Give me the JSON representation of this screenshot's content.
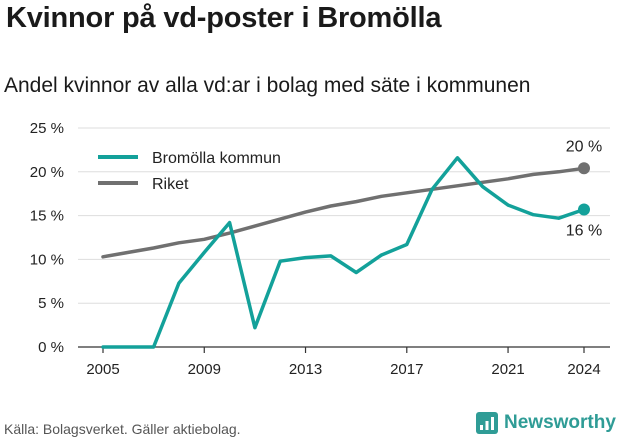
{
  "title": "Kvinnor på vd-poster i Bromölla",
  "subtitle": "Andel kvinnor av alla vd:ar i bolag med säte i kommunen",
  "source": "Källa: Bolagsverket. Gäller aktiebolag.",
  "brand": "Newsworthy",
  "colors": {
    "teal": "#13a19a",
    "gray": "#707070",
    "grid": "#dddddd",
    "brand": "#2f9c96"
  },
  "chart_data": {
    "type": "line",
    "x": [
      2005,
      2006,
      2007,
      2008,
      2009,
      2010,
      2011,
      2012,
      2013,
      2014,
      2015,
      2016,
      2017,
      2018,
      2019,
      2020,
      2021,
      2022,
      2023,
      2024
    ],
    "x_ticks": [
      "2005",
      "2009",
      "2013",
      "2017",
      "2021",
      "2024"
    ],
    "y_ticks": [
      "0 %",
      "5 %",
      "10 %",
      "15 %",
      "20 %",
      "25 %"
    ],
    "ylim": [
      0,
      25
    ],
    "series": [
      {
        "name": "Bromölla kommun",
        "color": "#13a19a",
        "values": [
          0,
          0,
          0,
          7.3,
          10.8,
          14.2,
          2.2,
          9.8,
          10.2,
          10.4,
          8.5,
          10.5,
          11.7,
          18.0,
          21.6,
          18.3,
          16.2,
          15.1,
          14.7,
          15.7
        ],
        "end_label": "16 %"
      },
      {
        "name": "Riket",
        "color": "#707070",
        "values": [
          10.3,
          10.8,
          11.3,
          11.9,
          12.3,
          13.0,
          13.8,
          14.6,
          15.4,
          16.1,
          16.6,
          17.2,
          17.6,
          18.0,
          18.4,
          18.8,
          19.2,
          19.7,
          20.0,
          20.4
        ],
        "end_label": "20 %"
      }
    ],
    "legend": [
      "Bromölla kommun",
      "Riket"
    ],
    "legend_position": "top-left",
    "grid": true
  }
}
